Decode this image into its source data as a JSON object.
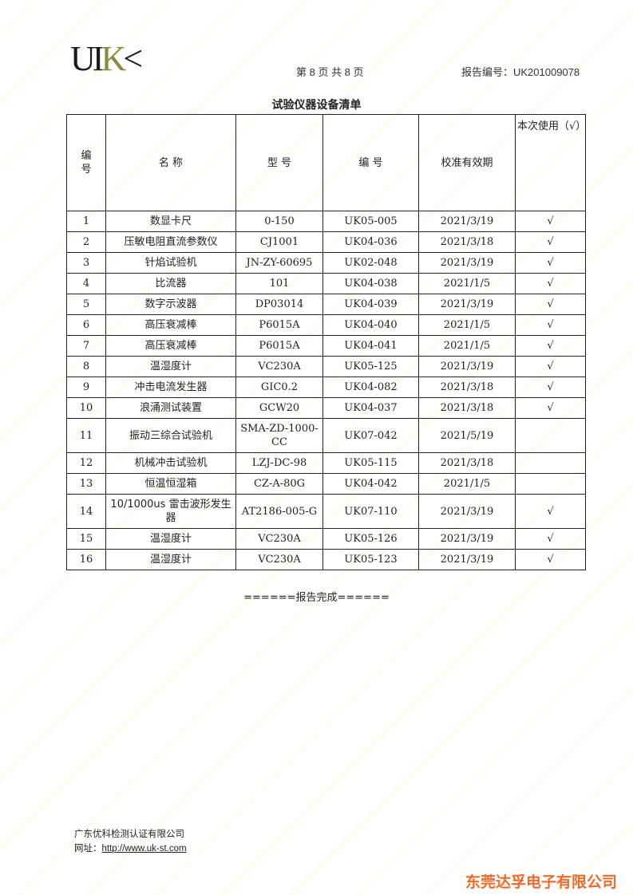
{
  "header": {
    "logo": "UIK",
    "page_info": "第 8 页 共 8 页",
    "report_no": "报告编号：UK201009078"
  },
  "title": "试验仪器设备清单",
  "table": {
    "columns": [
      "编号",
      "名 称",
      "型 号",
      "编 号",
      "校准有效期",
      "本次使用（√）"
    ],
    "rows": [
      [
        "1",
        "数显卡尺",
        "0-150",
        "UK05-005",
        "2021/3/19",
        "√"
      ],
      [
        "2",
        "压敏电阻直流参数仪",
        "CJ1001",
        "UK04-036",
        "2021/3/18",
        "√"
      ],
      [
        "3",
        "针焰试验机",
        "JN-ZY-60695",
        "UK02-048",
        "2021/3/19",
        "√"
      ],
      [
        "4",
        "比流器",
        "101",
        "UK04-038",
        "2021/1/5",
        "√"
      ],
      [
        "5",
        "数字示波器",
        "DP03014",
        "UK04-039",
        "2021/3/19",
        "√"
      ],
      [
        "6",
        "高压衰减棒",
        "P6015A",
        "UK04-040",
        "2021/1/5",
        "√"
      ],
      [
        "7",
        "高压衰减棒",
        "P6015A",
        "UK04-041",
        "2021/1/5",
        "√"
      ],
      [
        "8",
        "温湿度计",
        "VC230A",
        "UK05-125",
        "2021/3/19",
        "√"
      ],
      [
        "9",
        "冲击电流发生器",
        "GIC0.2",
        "UK04-082",
        "2021/3/18",
        "√"
      ],
      [
        "10",
        "浪涌测试装置",
        "GCW20",
        "UK04-037",
        "2021/3/18",
        "√"
      ],
      [
        "11",
        "振动三综合试验机",
        "SMA-ZD-1000-CC",
        "UK07-042",
        "2021/5/19",
        ""
      ],
      [
        "12",
        "机械冲击试验机",
        "LZJ-DC-98",
        "UK05-115",
        "2021/3/18",
        ""
      ],
      [
        "13",
        "恒温恒湿箱",
        "CZ-A-80G",
        "UK04-042",
        "2021/1/5",
        ""
      ],
      [
        "14",
        "10/1000us 雷击波形发生器",
        "AT2186-005-G",
        "UK07-110",
        "2021/3/19",
        "√"
      ],
      [
        "15",
        "温湿度计",
        "VC230A",
        "UK05-126",
        "2021/3/19",
        "√"
      ],
      [
        "16",
        "温湿度计",
        "VC230A",
        "UK05-123",
        "2021/3/19",
        "√"
      ]
    ]
  },
  "end_text": "======报告完成======",
  "footer": {
    "company": "广东优科检测认证有限公司",
    "url_label": "网址：",
    "url": "http://www.uk-st.com"
  },
  "stamp_text": "东莞达孚电子有限公司",
  "colors": {
    "stamp": "#ee6a2a",
    "logo_k": "#8c8a3c"
  }
}
